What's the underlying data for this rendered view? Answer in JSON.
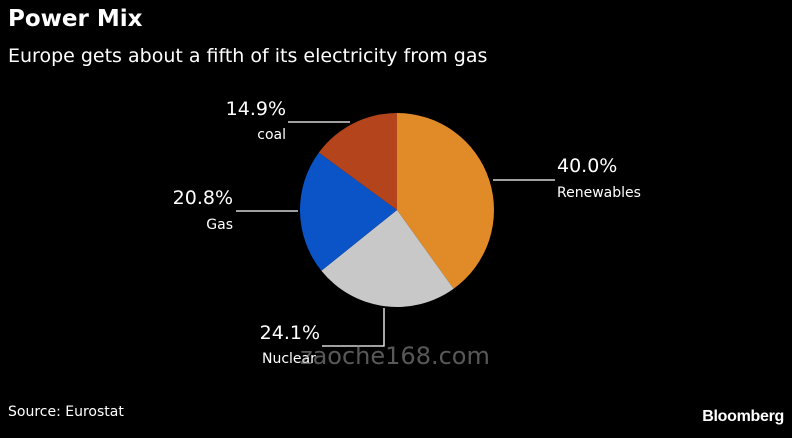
{
  "header": {
    "title": "Power Mix",
    "subtitle": "Europe gets about a fifth of its electricity from gas"
  },
  "footer": {
    "source": "Source: Eurostat",
    "brand": "Bloomberg"
  },
  "watermark": "zaoche168.com",
  "chart_data": {
    "type": "pie",
    "start": "top, clockwise",
    "slices": [
      {
        "name": "Renewables",
        "value": 40.0,
        "label": "40.0%",
        "color": "#e08a28"
      },
      {
        "name": "Nuclear",
        "value": 24.1,
        "label": "24.1%",
        "color": "#c8c8c8"
      },
      {
        "name": "Gas",
        "value": 20.8,
        "label": "20.8%",
        "color": "#0a54c8"
      },
      {
        "name": "coal",
        "value": 14.9,
        "label": "14.9%",
        "color": "#b4441c"
      }
    ]
  }
}
